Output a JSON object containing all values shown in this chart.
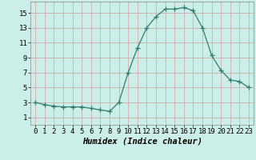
{
  "x": [
    0,
    1,
    2,
    3,
    4,
    5,
    6,
    7,
    8,
    9,
    10,
    11,
    12,
    13,
    14,
    15,
    16,
    17,
    18,
    19,
    20,
    21,
    22,
    23
  ],
  "y": [
    3.0,
    2.7,
    2.5,
    2.4,
    2.4,
    2.4,
    2.2,
    2.0,
    1.8,
    3.0,
    7.0,
    10.3,
    13.0,
    14.5,
    15.5,
    15.5,
    15.7,
    15.3,
    13.0,
    9.3,
    7.3,
    6.0,
    5.8,
    5.0
  ],
  "line_color": "#2e7d6e",
  "marker": "D",
  "marker_size": 2.2,
  "bg_color": "#cceee8",
  "grid_color_major": "#d4a0a0",
  "grid_color_minor": "#d4a0a0",
  "xlabel": "Humidex (Indice chaleur)",
  "xlim": [
    -0.5,
    23.5
  ],
  "ylim": [
    0,
    16.5
  ],
  "yticks": [
    1,
    3,
    5,
    7,
    9,
    11,
    13,
    15
  ],
  "xticks": [
    0,
    1,
    2,
    3,
    4,
    5,
    6,
    7,
    8,
    9,
    10,
    11,
    12,
    13,
    14,
    15,
    16,
    17,
    18,
    19,
    20,
    21,
    22,
    23
  ],
  "tick_fontsize": 6.5,
  "xlabel_fontsize": 7.5
}
